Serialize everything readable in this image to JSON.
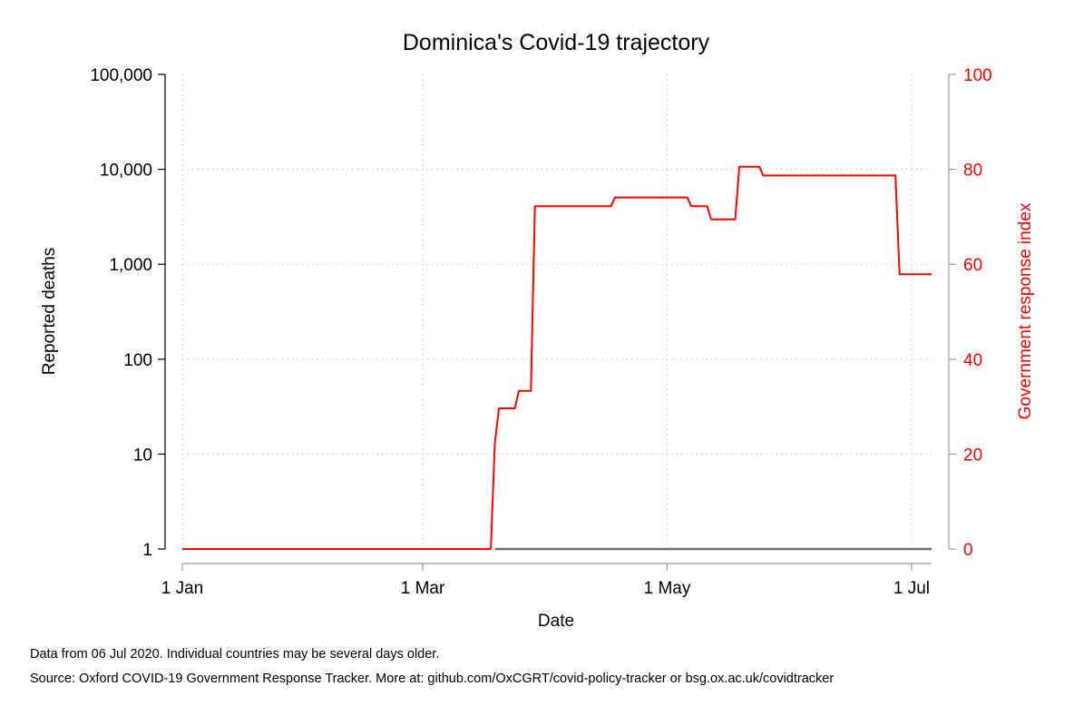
{
  "chart_data": {
    "type": "line",
    "title": "Dominica's Covid-19 trajectory",
    "xlabel": "Date",
    "ylabel_left": "Reported deaths",
    "ylabel_right": "Government response index",
    "x_ticks": [
      "1 Jan",
      "1 Mar",
      "1 May",
      "1 Jul"
    ],
    "x_tick_dates": [
      "2020-01-01",
      "2020-03-01",
      "2020-05-01",
      "2020-07-01"
    ],
    "xlim": [
      "2020-01-01",
      "2020-07-06"
    ],
    "y_left_scale": "log",
    "y_left_ticks": [
      "1",
      "10",
      "100",
      "1,000",
      "10,000",
      "100,000"
    ],
    "y_left_lim": [
      1,
      100000
    ],
    "y_right_ticks": [
      "0",
      "20",
      "40",
      "60",
      "80",
      "100"
    ],
    "y_right_lim": [
      0,
      100
    ],
    "grid": true,
    "colors": {
      "deaths": "#6e6e6e",
      "response": "#ff0000",
      "right_axis": "#ff0000"
    },
    "series": [
      {
        "axis": "left",
        "points": [
          [
            "2020-03-19",
            1
          ],
          [
            "2020-07-06",
            1
          ]
        ]
      },
      {
        "axis": "right",
        "points": [
          [
            "2020-01-01",
            0
          ],
          [
            "2020-03-18",
            0
          ],
          [
            "2020-03-19",
            22.22
          ],
          [
            "2020-03-20",
            29.63
          ],
          [
            "2020-03-24",
            29.63
          ],
          [
            "2020-03-25",
            33.33
          ],
          [
            "2020-03-28",
            33.33
          ],
          [
            "2020-03-29",
            72.22
          ],
          [
            "2020-04-17",
            72.22
          ],
          [
            "2020-04-18",
            74.07
          ],
          [
            "2020-05-06",
            74.07
          ],
          [
            "2020-05-07",
            72.22
          ],
          [
            "2020-05-11",
            72.22
          ],
          [
            "2020-05-12",
            69.44
          ],
          [
            "2020-05-18",
            69.44
          ],
          [
            "2020-05-19",
            80.56
          ],
          [
            "2020-05-24",
            80.56
          ],
          [
            "2020-05-25",
            78.7
          ],
          [
            "2020-06-27",
            78.7
          ],
          [
            "2020-06-28",
            57.87
          ],
          [
            "2020-07-06",
            57.87
          ]
        ]
      }
    ]
  },
  "notes": {
    "line1": "Data from 06 Jul 2020. Individual countries may be several days older.",
    "line2": "Source: Oxford COVID-19 Government Response Tracker. More at: github.com/OxCGRT/covid-policy-tracker or bsg.ox.ac.uk/covidtracker"
  }
}
